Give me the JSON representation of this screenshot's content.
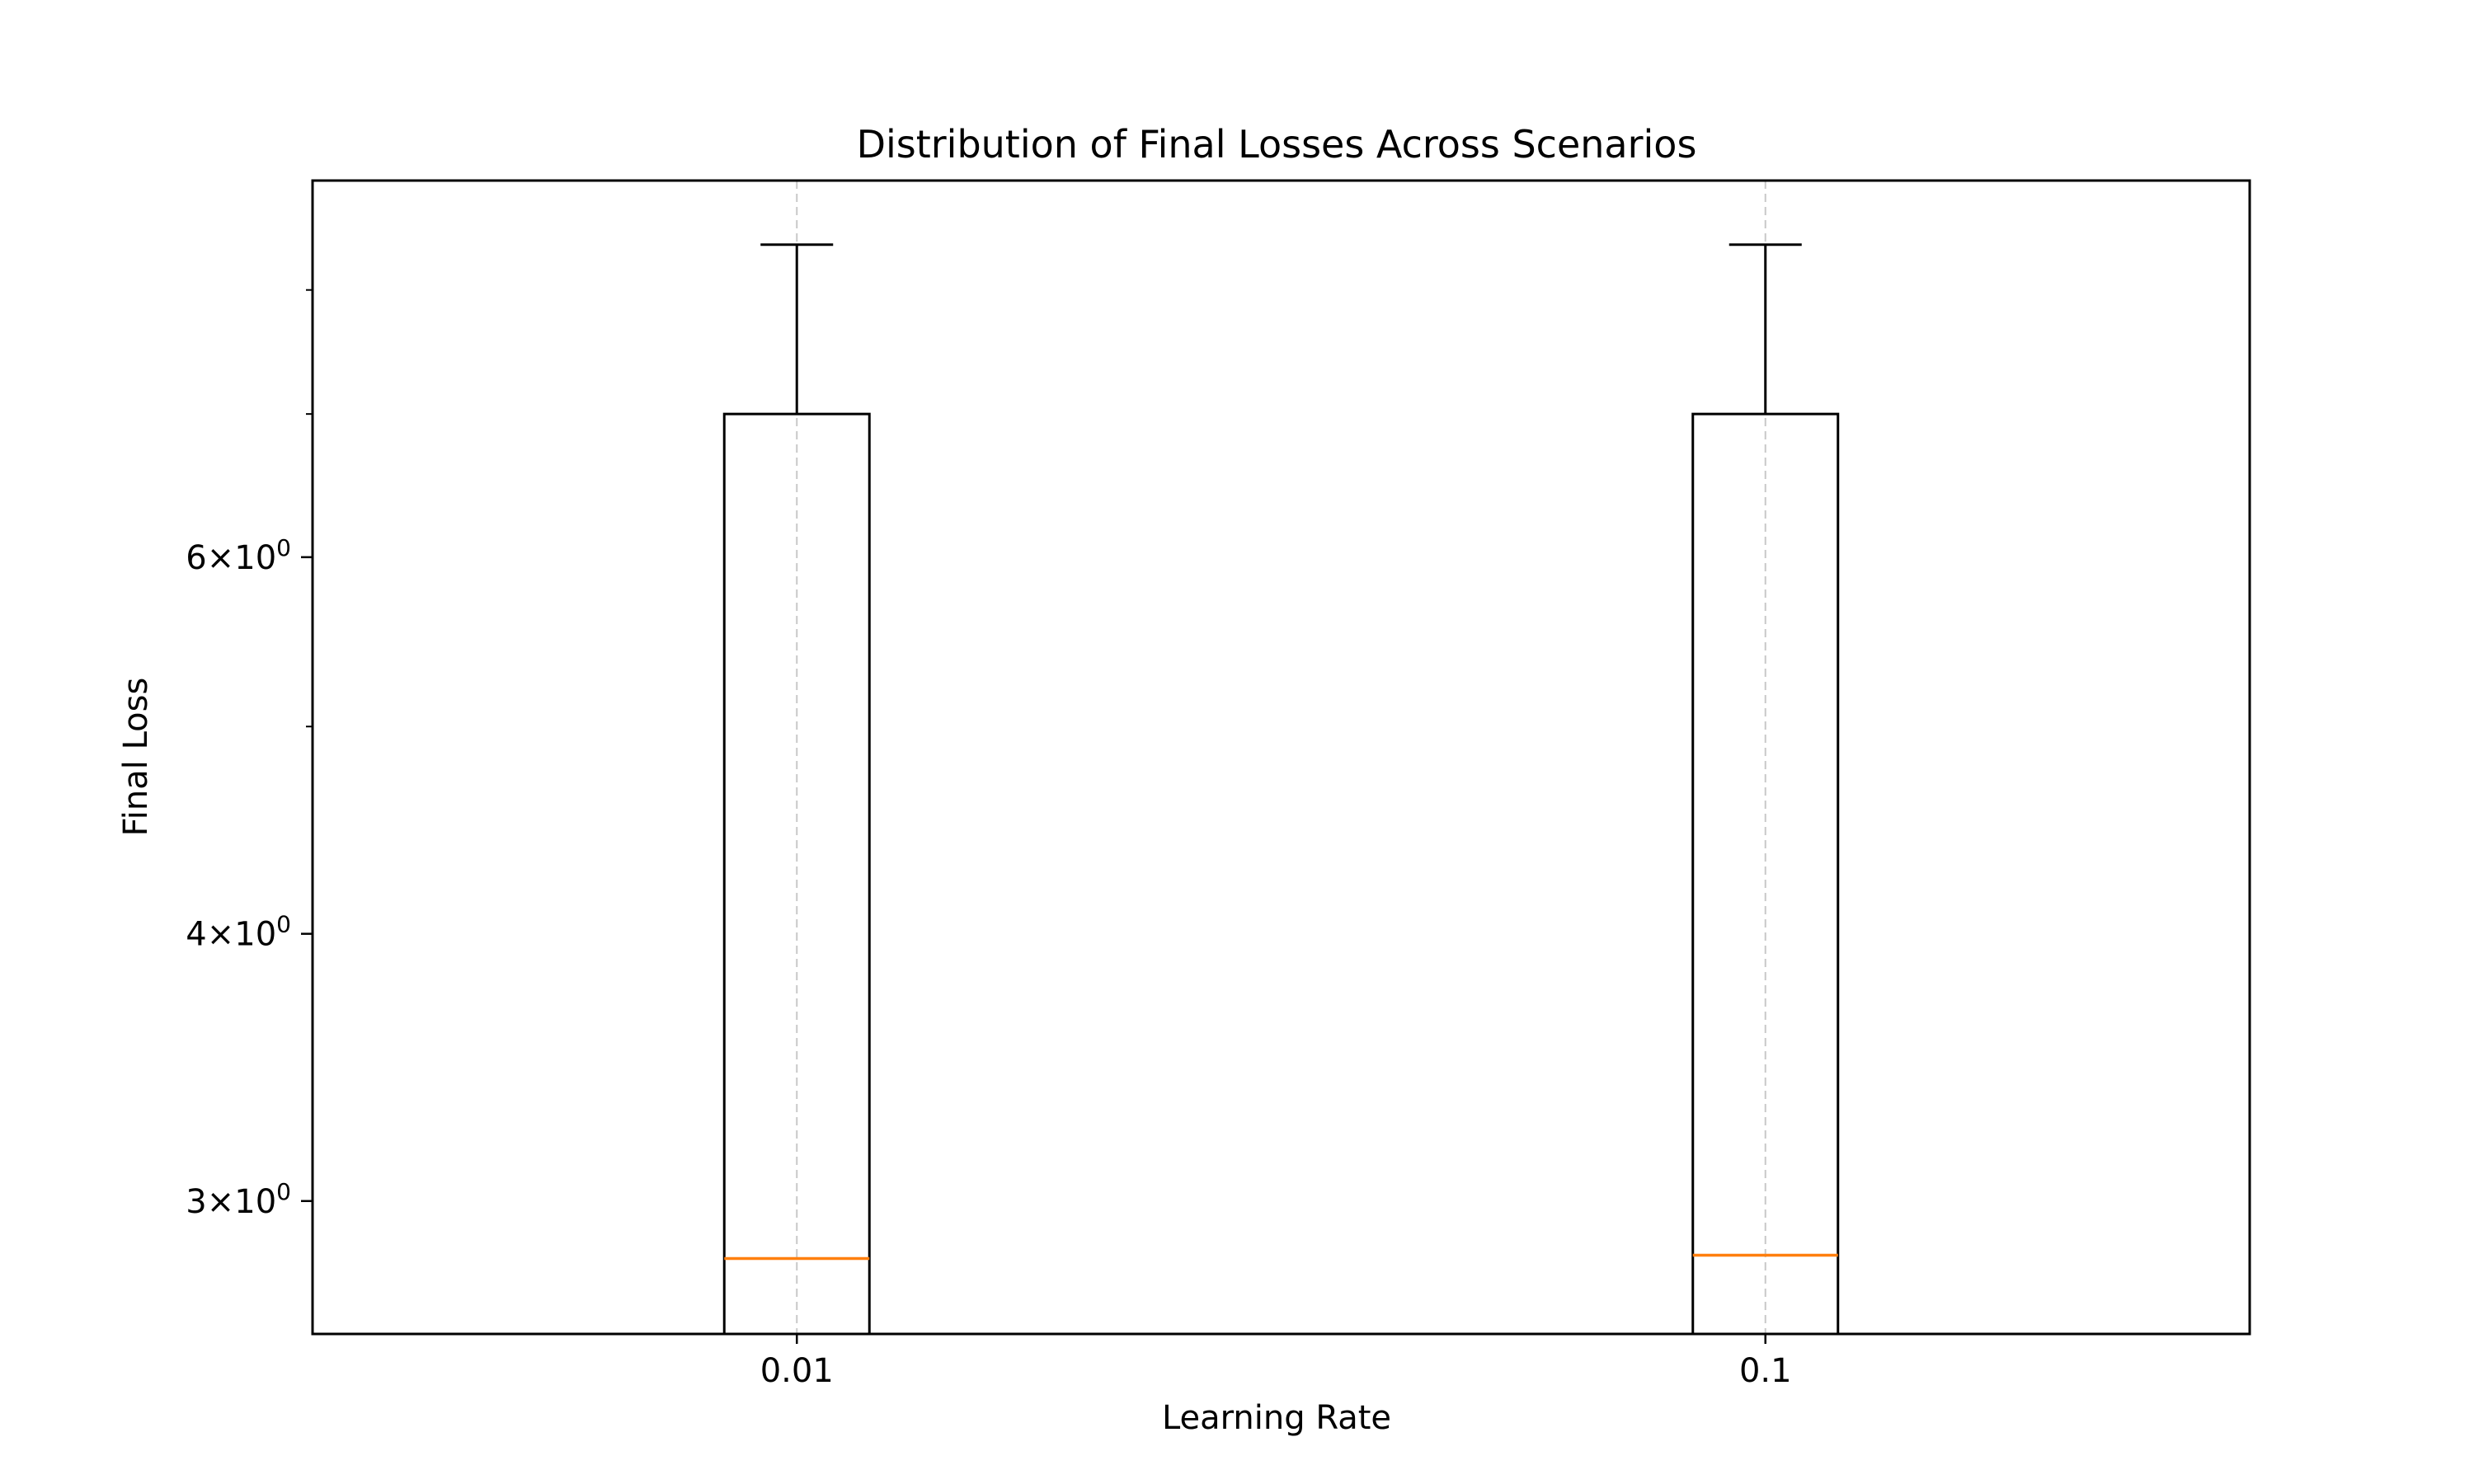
{
  "chart_data": {
    "type": "box",
    "title": "Distribution of Final Losses Across Scenarios",
    "xlabel": "Learning Rate",
    "ylabel": "Final Loss",
    "categories": [
      "0.01",
      "0.1"
    ],
    "yscale": "log",
    "ylim": [
      2.6,
      9.0
    ],
    "yticks_major": [
      {
        "value": 3,
        "mantissa": "3",
        "base": "10",
        "exp": "0"
      },
      {
        "value": 4,
        "mantissa": "4",
        "base": "10",
        "exp": "0"
      },
      {
        "value": 6,
        "mantissa": "6",
        "base": "10",
        "exp": "0"
      }
    ],
    "yticks_minor": [
      5,
      7,
      8
    ],
    "boxes": [
      {
        "category": "0.01",
        "whisker_low": 2.6,
        "q1": 2.6,
        "median": 2.82,
        "q3": 7.0,
        "whisker_high": 8.4
      },
      {
        "category": "0.1",
        "whisker_low": 2.6,
        "q1": 2.6,
        "median": 2.83,
        "q3": 7.0,
        "whisker_high": 8.4
      }
    ],
    "grid": "x-dashed",
    "colors": {
      "box": "#000000",
      "median": "#ff7f0e",
      "grid": "#c8c8c8"
    }
  }
}
